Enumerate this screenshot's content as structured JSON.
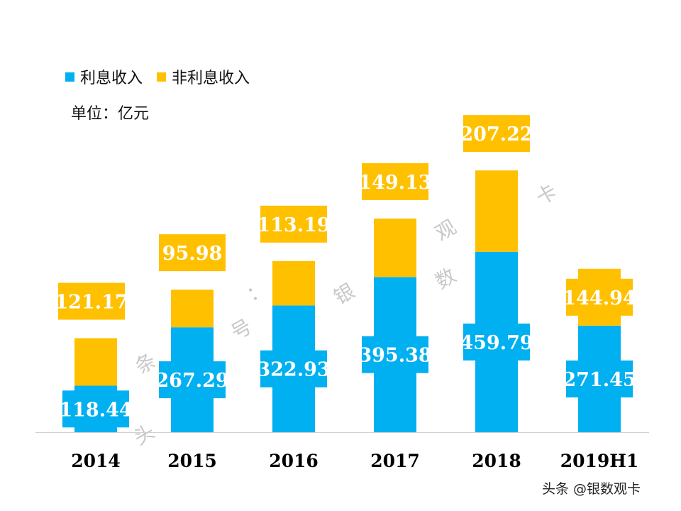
{
  "chart_data": {
    "type": "bar",
    "stacked": true,
    "unit_label": "单位：亿元",
    "categories": [
      "2014",
      "2015",
      "2016",
      "2017",
      "2018",
      "2019H1"
    ],
    "series": [
      {
        "name": "利息收入",
        "color": "#00B0F0",
        "values": [
          118.44,
          267.29,
          322.93,
          395.38,
          459.79,
          271.45
        ]
      },
      {
        "name": "非利息收入",
        "color": "#FFC000",
        "values": [
          121.17,
          95.98,
          113.19,
          149.13,
          207.22,
          144.94
        ]
      }
    ],
    "ylim": [
      0,
      720
    ],
    "grid": false,
    "legend": "top-left"
  },
  "watermark": "头条号：银数观卡",
  "credit": "头条 @银数观卡"
}
